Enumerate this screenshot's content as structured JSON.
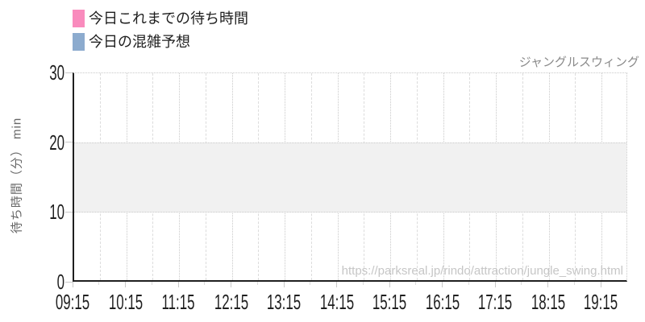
{
  "chart": {
    "attraction_title": "ジャングルスウィング",
    "watermark_url": "https://parksreal.jp/rindo/attraction/jungle_swing.html"
  },
  "legend": {
    "items": [
      {
        "key": "today-actual-wait",
        "label": "今日これまでの待ち時間",
        "color": "#f98bbd"
      },
      {
        "key": "today-forecast",
        "label": "今日の混雑予想",
        "color": "#8cabce"
      }
    ]
  },
  "chart_data": {
    "type": "line",
    "title": "ジャングルスウィング",
    "xlabel": "",
    "ylabel": "待ち時間（分） min",
    "x_ticks": [
      "09:15",
      "10:15",
      "11:15",
      "12:15",
      "13:15",
      "14:15",
      "15:15",
      "16:15",
      "17:15",
      "18:15",
      "19:15"
    ],
    "y_ticks": [
      0,
      10,
      20,
      30
    ],
    "ylim": [
      0,
      30
    ],
    "xlim": [
      "09:15",
      "19:45"
    ],
    "grid": true,
    "legend_position": "top-left",
    "highlight_band": {
      "y_from": 10,
      "y_to": 20,
      "color": "#f1f1f1"
    },
    "series": [
      {
        "name": "今日これまでの待ち時間",
        "color": "#f98bbd",
        "values": []
      },
      {
        "name": "今日の混雑予想",
        "color": "#8cabce",
        "values": []
      }
    ]
  }
}
